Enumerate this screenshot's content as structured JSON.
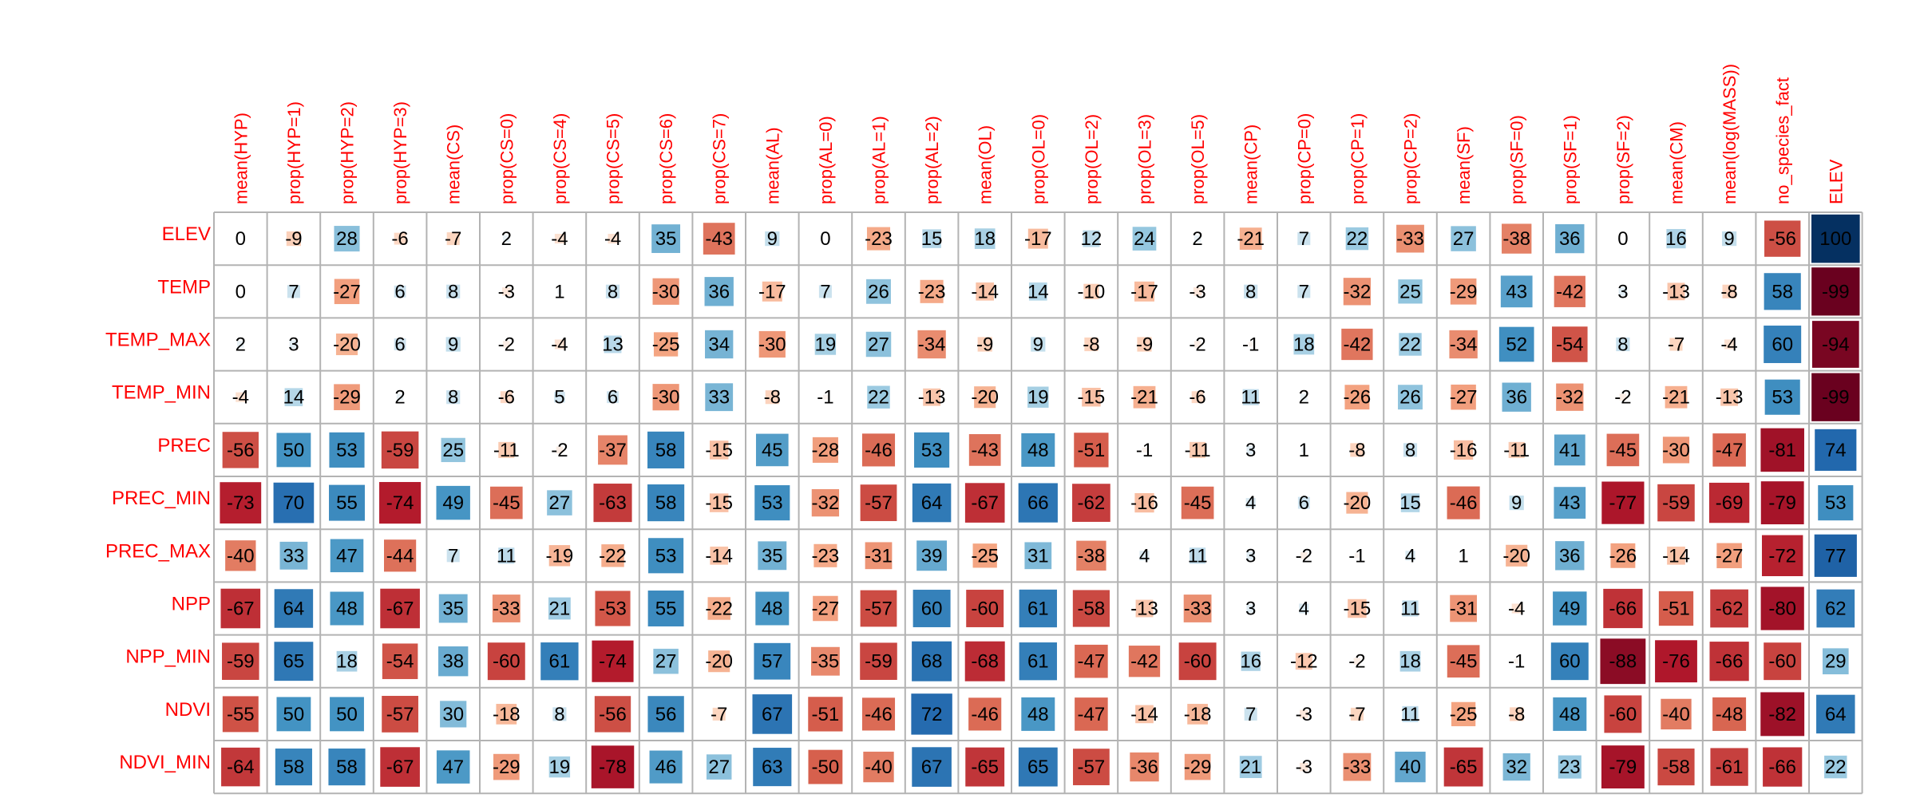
{
  "chart_data": {
    "type": "heatmap",
    "columns": [
      "mean(HYP)",
      "prop(HYP=1)",
      "prop(HYP=2)",
      "prop(HYP=3)",
      "mean(CS)",
      "prop(CS=0)",
      "prop(CS=4)",
      "prop(CS=5)",
      "prop(CS=6)",
      "prop(CS=7)",
      "mean(AL)",
      "prop(AL=0)",
      "prop(AL=1)",
      "prop(AL=2)",
      "mean(OL)",
      "prop(OL=0)",
      "prop(OL=2)",
      "prop(OL=3)",
      "prop(OL=5)",
      "mean(CP)",
      "prop(CP=0)",
      "prop(CP=1)",
      "prop(CP=2)",
      "mean(SF)",
      "prop(SF=0)",
      "prop(SF=1)",
      "prop(SF=2)",
      "mean(CM)",
      "mean(log(MASS))",
      "no_species_fact",
      "ELEV"
    ],
    "rows": [
      "ELEV",
      "TEMP",
      "TEMP_MAX",
      "TEMP_MIN",
      "PREC",
      "PREC_MIN",
      "PREC_MAX",
      "NPP",
      "NPP_MIN",
      "NDVI",
      "NDVI_MIN"
    ],
    "values": [
      [
        0,
        -9,
        28,
        -6,
        -7,
        2,
        -4,
        -4,
        35,
        -43,
        9,
        0,
        -23,
        15,
        18,
        -17,
        12,
        24,
        2,
        -21,
        7,
        22,
        -33,
        27,
        -38,
        36,
        0,
        16,
        9,
        -56,
        100
      ],
      [
        0,
        7,
        -27,
        6,
        8,
        -3,
        1,
        8,
        -30,
        36,
        -17,
        7,
        26,
        -23,
        -14,
        14,
        -10,
        -17,
        -3,
        8,
        7,
        -32,
        25,
        -29,
        43,
        -42,
        3,
        -13,
        -8,
        58,
        -99
      ],
      [
        2,
        3,
        -20,
        6,
        9,
        -2,
        -4,
        13,
        -25,
        34,
        -30,
        19,
        27,
        -34,
        -9,
        9,
        -8,
        -9,
        -2,
        -1,
        18,
        -42,
        22,
        -34,
        52,
        -54,
        8,
        -7,
        -4,
        60,
        -94
      ],
      [
        -4,
        14,
        -29,
        2,
        8,
        -6,
        5,
        6,
        -30,
        33,
        -8,
        -1,
        22,
        -13,
        -20,
        19,
        -15,
        -21,
        -6,
        11,
        2,
        -26,
        26,
        -27,
        36,
        -32,
        -2,
        -21,
        -13,
        53,
        -99
      ],
      [
        -56,
        50,
        53,
        -59,
        25,
        -11,
        -2,
        -37,
        58,
        -15,
        45,
        -28,
        -46,
        53,
        -43,
        48,
        -51,
        -1,
        -11,
        3,
        1,
        -8,
        8,
        -16,
        -11,
        41,
        -45,
        -30,
        -47,
        -81,
        74
      ],
      [
        -73,
        70,
        55,
        -74,
        49,
        -45,
        27,
        -63,
        58,
        -15,
        53,
        -32,
        -57,
        64,
        -67,
        66,
        -62,
        -16,
        -45,
        4,
        6,
        -20,
        15,
        -46,
        9,
        43,
        -77,
        -59,
        -69,
        -79,
        53
      ],
      [
        -40,
        33,
        47,
        -44,
        7,
        11,
        -19,
        -22,
        53,
        -14,
        35,
        -23,
        -31,
        39,
        -25,
        31,
        -38,
        4,
        11,
        3,
        -2,
        -1,
        4,
        1,
        -20,
        36,
        -26,
        -14,
        -27,
        -72,
        77
      ],
      [
        -67,
        64,
        48,
        -67,
        35,
        -33,
        21,
        -53,
        55,
        -22,
        48,
        -27,
        -57,
        60,
        -60,
        61,
        -58,
        -13,
        -33,
        3,
        4,
        -15,
        11,
        -31,
        -4,
        49,
        -66,
        -51,
        -62,
        -80,
        62
      ],
      [
        -59,
        65,
        18,
        -54,
        38,
        -60,
        61,
        -74,
        27,
        -20,
        57,
        -35,
        -59,
        68,
        -68,
        61,
        -47,
        -42,
        -60,
        16,
        -12,
        -2,
        18,
        -45,
        -1,
        60,
        -88,
        -76,
        -66,
        -60,
        29
      ],
      [
        -55,
        50,
        50,
        -57,
        30,
        -18,
        8,
        -56,
        56,
        -7,
        67,
        -51,
        -46,
        72,
        -46,
        48,
        -47,
        -14,
        -18,
        7,
        -3,
        -7,
        11,
        -25,
        -8,
        48,
        -60,
        -40,
        -48,
        -82,
        64
      ],
      [
        -64,
        58,
        58,
        -67,
        47,
        -29,
        19,
        -78,
        46,
        27,
        63,
        -50,
        -40,
        67,
        -65,
        65,
        -57,
        -36,
        -29,
        21,
        -3,
        -33,
        40,
        -65,
        32,
        23,
        -79,
        -58,
        -61,
        -66,
        22
      ]
    ],
    "value_range": [
      -100,
      100
    ],
    "colors": {
      "positive_max": "#053061",
      "negative_max": "#67001f",
      "neutral": "#f7f7f7",
      "label": "#ff0000",
      "grid": "#b3b3b3"
    }
  }
}
